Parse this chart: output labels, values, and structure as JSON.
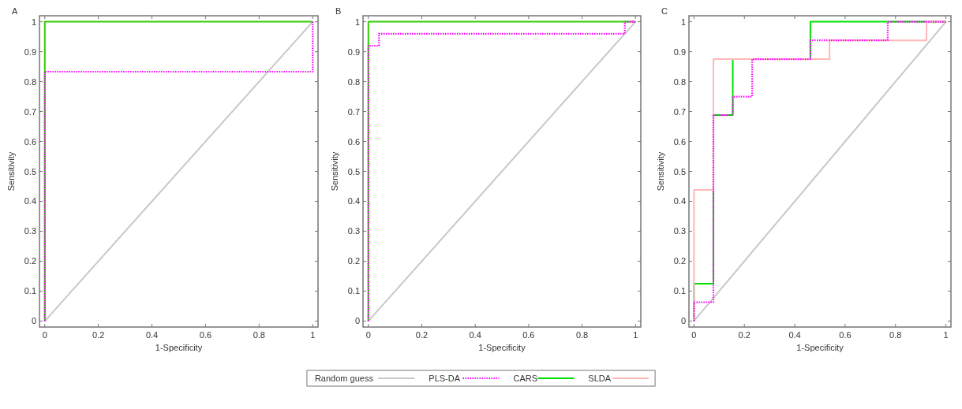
{
  "chart_data": [
    {
      "type": "line",
      "title": "A",
      "xlabel": "1-Specificity",
      "ylabel": "Sensitivity",
      "xlim": [
        -0.02,
        1.02
      ],
      "ylim": [
        -0.02,
        1.02
      ],
      "xticks": [
        0,
        0.2,
        0.4,
        0.6,
        0.8,
        1
      ],
      "yticks": [
        0,
        0.1,
        0.2,
        0.3,
        0.4,
        0.5,
        0.6,
        0.7,
        0.8,
        0.9,
        1
      ],
      "series": [
        {
          "color": "#c8c8c8",
          "x": [
            0,
            1
          ],
          "values": [
            0,
            1
          ]
        },
        {
          "color": "#ff00ff",
          "line_style": "dotted",
          "x": [
            0,
            0,
            1,
            1
          ],
          "values": [
            0,
            0.833,
            0.833,
            1
          ]
        },
        {
          "color": "#33cc00",
          "x": [
            0,
            0,
            1
          ],
          "values": [
            0,
            1,
            1
          ]
        }
      ]
    },
    {
      "type": "line",
      "title": "B",
      "xlabel": "1-Specificity",
      "ylabel": "Sensitivity",
      "xlim": [
        -0.02,
        1.02
      ],
      "ylim": [
        -0.02,
        1.02
      ],
      "xticks": [
        0,
        0.2,
        0.4,
        0.6,
        0.8,
        1
      ],
      "yticks": [
        0,
        0.1,
        0.2,
        0.3,
        0.4,
        0.5,
        0.6,
        0.7,
        0.8,
        0.9,
        1
      ],
      "series": [
        {
          "color": "#c8c8c8",
          "x": [
            0,
            1
          ],
          "values": [
            0,
            1
          ]
        },
        {
          "color": "#ff00ff",
          "line_style": "dotted",
          "x": [
            0,
            0,
            0.04,
            0.04,
            0.96,
            0.96,
            1
          ],
          "values": [
            0,
            0.92,
            0.92,
            0.96,
            0.96,
            1,
            1
          ]
        },
        {
          "color": "#33cc00",
          "x": [
            0,
            0,
            1
          ],
          "values": [
            0,
            1,
            1
          ]
        }
      ]
    },
    {
      "type": "line",
      "title": "C",
      "xlabel": "1-Specificity",
      "ylabel": "Sensitivity",
      "xlim": [
        -0.02,
        1.02
      ],
      "ylim": [
        -0.02,
        1.02
      ],
      "xticks": [
        0,
        0.2,
        0.4,
        0.6,
        0.8,
        1
      ],
      "yticks": [
        0,
        0.1,
        0.2,
        0.3,
        0.4,
        0.5,
        0.6,
        0.7,
        0.8,
        0.9,
        1
      ],
      "legend": "bottom",
      "series": [
        {
          "name": "Random guess",
          "color": "#c8c8c8",
          "x": [
            0,
            1
          ],
          "values": [
            0,
            1
          ]
        },
        {
          "name": "PLS-DA",
          "color": "#ff00ff",
          "line_style": "dotted",
          "x": [
            0,
            0,
            0.077,
            0.077,
            0.154,
            0.154,
            0.231,
            0.231,
            0.462,
            0.462,
            0.769,
            0.769,
            1
          ],
          "values": [
            0,
            0.063,
            0.063,
            0.688,
            0.688,
            0.75,
            0.75,
            0.875,
            0.875,
            0.938,
            0.938,
            1,
            1
          ]
        },
        {
          "name": "CARS",
          "color": "#00e000",
          "x": [
            0,
            0,
            0.077,
            0.077,
            0.154,
            0.154,
            0.462,
            0.462,
            1
          ],
          "values": [
            0,
            0.125,
            0.125,
            0.688,
            0.688,
            0.875,
            0.875,
            1,
            1
          ]
        },
        {
          "name": "SLDA",
          "color": "#ffb8b8",
          "x": [
            0,
            0,
            0.077,
            0.077,
            0.538,
            0.538,
            0.923,
            0.923,
            1
          ],
          "values": [
            0,
            0.438,
            0.438,
            0.875,
            0.875,
            0.938,
            0.938,
            1,
            1
          ]
        }
      ]
    }
  ]
}
